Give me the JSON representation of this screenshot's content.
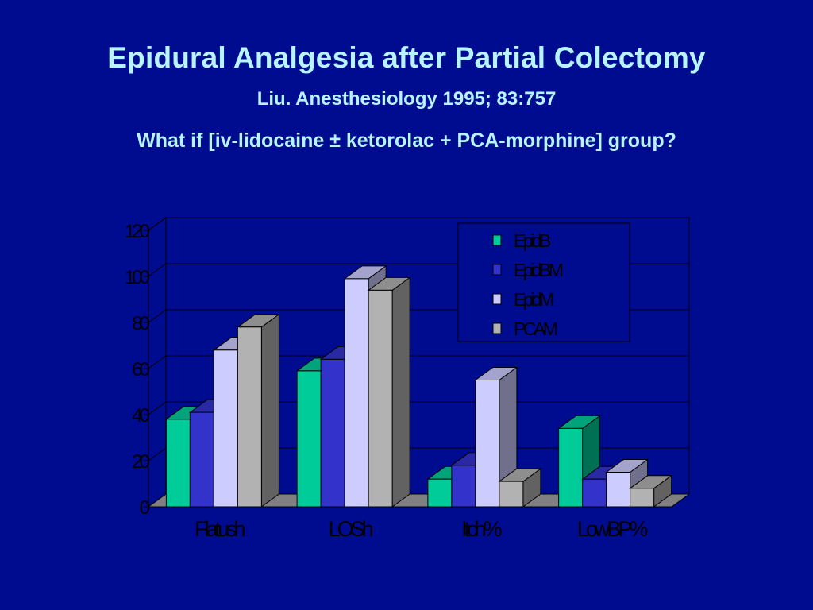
{
  "slide": {
    "title": "Epidural Analgesia after Partial Colectomy",
    "subtitle": "Liu. Anesthesiology 1995; 83:757",
    "question": "What if [iv-lidocaine ± ketorolac + PCA-morphine] group?"
  },
  "chart_data": {
    "type": "bar",
    "categories": [
      "Flatush",
      "LOSh",
      "Itch%",
      "LowBP%"
    ],
    "series": [
      {
        "name": "EpidB",
        "values": [
          38,
          59,
          12,
          34
        ],
        "color": "#00cc99"
      },
      {
        "name": "EpidBM",
        "values": [
          41,
          64,
          18,
          12
        ],
        "color": "#3333cc"
      },
      {
        "name": "EpidM",
        "values": [
          68,
          99,
          55,
          15
        ],
        "color": "#ccccff"
      },
      {
        "name": "PCAM",
        "values": [
          78,
          94,
          11,
          8
        ],
        "color": "#b2b2b2"
      }
    ],
    "yticks": [
      "0",
      "20",
      "40",
      "60",
      "80",
      "100",
      "120"
    ],
    "ylim": [
      0,
      120
    ],
    "grid": true,
    "legend_position": "top-right"
  },
  "colors": {
    "background": "#000c8f",
    "title_text": "#b8f4ff",
    "plot_wall": "#000c8f",
    "floor": "#808080"
  }
}
